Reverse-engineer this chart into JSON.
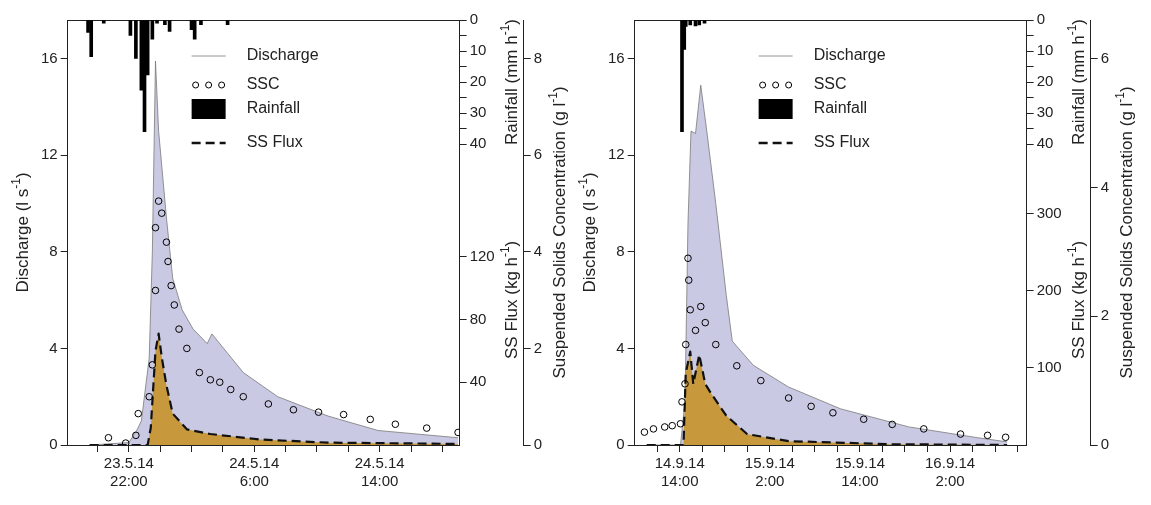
{
  "chart_data": [
    {
      "type": "bar",
      "tick_labels": "y",
      "legend": "bottom left",
      "ylabel": "Rainfall (mm h$^{-1}$)",
      "xlim": [
        "--05-23T18:06",
        "--05-24T19:06"
      ],
      "ylim": [
        40,
        0
      ],
      "yticks": [
        0,
        {
          "value": 5,
          "label": null
        },
        10,
        {
          "value": 15,
          "label": null
        },
        20,
        {
          "value": 25,
          "label": null
        },
        30,
        {
          "value": 35,
          "label": null
        },
        40
      ],
      "series": [
        {
          "name": "Rainfall",
          "color": "#000000",
          "x": [
            "--05-23T19:24",
            "--05-23T19:36",
            "--05-23T20:24",
            "--05-23T22:06",
            "--05-23T22:27",
            "--05-23T22:48",
            "--05-23T23:00",
            "--05-23T23:12",
            "--05-23T23:30",
            "--05-23T23:48",
            "--05-24T00:18",
            "--05-24T00:36",
            "--05-24T02:00",
            "--05-24T02:12",
            "--05-24T02:36",
            "--05-24T04:18"
          ],
          "values": [
            4,
            11.8,
            1,
            5,
            12.4,
            22.6,
            36,
            17.7,
            6.2,
            1,
            1.5,
            3.7,
            3.1,
            6.2,
            1.5,
            1.5
          ]
        }
      ]
    },
    {
      "type": "area",
      "legend": "top right",
      "ylabel": "Discharge (l s$^{-1}$)",
      "y2label": "Suspended Solids Concentration (g l$^{-1}$)",
      "y3label": "SS Flux (kg h$^{-1}$)",
      "xlim": [
        "--05-23T18:06",
        "--05-24T19:06"
      ],
      "xticks": [
        {
          "value": "--05-23T20:00",
          "label": null
        },
        {
          "value": "--05-23T22:00",
          "label": "23.5.14 22:00"
        },
        {
          "value": "--05-24T00:00",
          "label": null
        },
        {
          "value": "--05-24T02:00",
          "label": null
        },
        {
          "value": "--05-24T04:00",
          "label": null
        },
        {
          "value": "--05-24T06:00",
          "label": "24.5.14 6:00"
        },
        {
          "value": "--05-24T08:00",
          "label": null
        },
        {
          "value": "--05-24T10:00",
          "label": null
        },
        {
          "value": "--05-24T12:00",
          "label": null
        },
        {
          "value": "--05-24T14:00",
          "label": "24.5.14 14:00"
        },
        {
          "value": "--05-24T16:00",
          "label": null
        },
        {
          "value": "--05-24T18:00",
          "label": null
        }
      ],
      "ylim": [
        0,
        17.6
      ],
      "yticks": [
        0,
        4,
        8,
        12,
        16
      ],
      "y2lim": [
        0,
        8.8
      ],
      "y2ticks": [
        0,
        2,
        4,
        6,
        8
      ],
      "y3lim": [
        0,
        271
      ],
      "y3ticks": [
        40,
        80,
        120
      ],
      "series": [
        {
          "name": "Discharge",
          "color": "#c9c9e3",
          "x": [
            "--05-23T19:30",
            "--05-23T22:00",
            "--05-23T22:30",
            "--05-23T22:48",
            "--05-23T23:18",
            "--05-23T23:30",
            "--05-23T23:42",
            "--05-23T23:54",
            "--05-24T00:24",
            "--05-24T00:48",
            "--05-24T01:24",
            "--05-24T02:06",
            "--05-24T03:00",
            "--05-24T03:18",
            "--05-24T04:18",
            "--05-24T05:18",
            "--05-24T07:30",
            "--05-24T10:42",
            "--05-24T13:54",
            "--05-24T19:00"
          ],
          "values": [
            0,
            0.1,
            0.6,
            1.0,
            3.6,
            8.0,
            15.9,
            13.0,
            9.4,
            6.9,
            5.6,
            4.8,
            4.2,
            4.6,
            3.8,
            3.0,
            2.0,
            1.2,
            0.6,
            0.3
          ]
        },
        {
          "name": "SSC",
          "type": "scatter",
          "marker": "circle",
          "axis": "y2",
          "color": "#000000",
          "x": [
            "--05-23T20:42",
            "--05-23T21:48",
            "--05-23T22:27",
            "--05-23T22:36",
            "--05-23T23:18",
            "--05-23T23:30",
            "--05-23T23:42",
            "--05-23T23:42",
            "--05-23T23:54",
            "--05-24T00:06",
            "--05-24T00:24",
            "--05-24T00:30",
            "--05-24T00:42",
            "--05-24T00:54",
            "--05-24T01:12",
            "--05-24T01:42",
            "--05-24T02:30",
            "--05-24T03:12",
            "--05-24T03:48",
            "--05-24T04:30",
            "--05-24T05:18",
            "--05-24T06:54",
            "--05-24T08:30",
            "--05-24T10:06",
            "--05-24T11:42",
            "--05-24T13:24",
            "--05-24T15:00",
            "--05-24T17:00",
            "--05-24T19:00"
          ],
          "values": [
            0.15,
            0.04,
            0.2,
            0.65,
            1.0,
            1.66,
            3.2,
            4.5,
            5.05,
            4.8,
            4.2,
            3.8,
            3.3,
            2.9,
            2.4,
            2.0,
            1.5,
            1.35,
            1.3,
            1.15,
            1.0,
            0.85,
            0.73,
            0.68,
            0.63,
            0.53,
            0.43,
            0.35,
            0.26
          ]
        },
        {
          "name": "SS Flux",
          "type": "area",
          "line_style": "dashed",
          "axis": "y3",
          "color": "#c8993c",
          "x": [
            "--05-23T19:30",
            "--05-23T23:12",
            "--05-23T23:24",
            "--05-23T23:42",
            "--05-23T23:54",
            "--05-24T00:06",
            "--05-24T00:24",
            "--05-24T00:48",
            "--05-24T01:42",
            "--05-24T03:12",
            "--05-24T06:24",
            "--05-24T10:42",
            "--05-24T19:00"
          ],
          "values": [
            0,
            0,
            11,
            60,
            71,
            56,
            38,
            20,
            10,
            7,
            3.5,
            1.5,
            0.7
          ]
        }
      ]
    },
    {
      "type": "bar",
      "tick_labels": "y",
      "legend": "bottom left",
      "ylabel": "Rainfall (mm h$^{-1}$)",
      "xlim": [
        "--09-14T08:00",
        "--09-16T12:12"
      ],
      "ylim": [
        40,
        0
      ],
      "yticks": [
        0,
        {
          "value": 5,
          "label": null
        },
        10,
        {
          "value": 15,
          "label": null
        },
        20,
        {
          "value": 25,
          "label": null
        },
        30,
        {
          "value": 35,
          "label": null
        },
        40
      ],
      "series": [
        {
          "name": "Rainfall",
          "color": "#000000",
          "x": [
            "--09-14T14:18",
            "--09-14T14:36",
            "--09-14T14:48",
            "--09-14T15:24",
            "--09-14T16:06",
            "--09-14T16:36",
            "--09-14T17:18"
          ],
          "values": [
            36,
            9.5,
            2.1,
            1.6,
            1.9,
            1.6,
            1
          ]
        }
      ]
    },
    {
      "type": "area",
      "legend": "top right",
      "ylabel": "Discharge (l s$^{-1}$)",
      "y2label": "Suspended Solids Concentration (g l$^{-1}$)",
      "y3label": "SS Flux (kg h$^{-1}$)",
      "xlim": [
        "--09-14T08:00",
        "--09-16T12:12"
      ],
      "xticks": [
        {
          "value": "--09-14T11:00",
          "label": null
        },
        {
          "value": "--09-14T14:00",
          "label": "14.9.14 14:00"
        },
        {
          "value": "--09-14T17:00",
          "label": null
        },
        {
          "value": "--09-14T20:00",
          "label": null
        },
        {
          "value": "--09-14T23:00",
          "label": null
        },
        {
          "value": "--09-15T02:00",
          "label": "15.9.14 2:00"
        },
        {
          "value": "--09-15T05:00",
          "label": null
        },
        {
          "value": "--09-15T08:00",
          "label": null
        },
        {
          "value": "--09-15T11:00",
          "label": null
        },
        {
          "value": "--09-15T14:00",
          "label": "15.9.14 14:00"
        },
        {
          "value": "--09-15T17:00",
          "label": null
        },
        {
          "value": "--09-15T20:00",
          "label": null
        },
        {
          "value": "--09-15T23:00",
          "label": null
        },
        {
          "value": "--09-16T02:00",
          "label": "16.9.14 2:00"
        },
        {
          "value": "--09-16T05:00",
          "label": null
        },
        {
          "value": "--09-16T08:00",
          "label": null
        },
        {
          "value": "--09-16T11:00",
          "label": null
        }
      ],
      "ylim": [
        0,
        17.6
      ],
      "yticks": [
        0,
        4,
        8,
        12,
        16
      ],
      "y2lim": [
        0,
        6.6
      ],
      "y2ticks": [
        0,
        2,
        4,
        6
      ],
      "y3lim": [
        0,
        551
      ],
      "y3ticks": [
        100,
        200,
        300
      ],
      "series": [
        {
          "name": "Discharge",
          "color": "#c9c9e3",
          "x": [
            "--09-14T09:36",
            "--09-14T14:06",
            "--09-14T14:42",
            "--09-14T15:06",
            "--09-14T15:30",
            "--09-14T16:06",
            "--09-14T16:48",
            "--09-14T17:36",
            "--09-14T18:48",
            "--09-14T20:12",
            "--09-14T21:00",
            "--09-14T23:48",
            "--09-15T04:30",
            "--09-15T11:24",
            "--09-15T20:30",
            "--09-16T05:42",
            "--09-16T09:36"
          ],
          "values": [
            0,
            0,
            1.8,
            9.2,
            13.0,
            12.9,
            14.9,
            13.0,
            10.0,
            6.2,
            4.3,
            3.3,
            2.4,
            1.5,
            0.75,
            0.3,
            0.13
          ]
        },
        {
          "name": "SSC",
          "type": "scatter",
          "marker": "circle",
          "axis": "y2",
          "color": "#000000",
          "x": [
            "--09-14T09:18",
            "--09-14T10:30",
            "--09-14T12:00",
            "--09-14T13:00",
            "--09-14T14:06",
            "--09-14T14:18",
            "--09-14T14:42",
            "--09-14T14:48",
            "--09-14T15:06",
            "--09-14T15:12",
            "--09-14T15:24",
            "--09-14T16:06",
            "--09-14T16:48",
            "--09-14T17:24",
            "--09-14T18:48",
            "--09-14T21:36",
            "--09-15T00:48",
            "--09-15T04:30",
            "--09-15T07:30",
            "--09-15T10:24",
            "--09-15T14:30",
            "--09-15T18:18",
            "--09-15T22:30",
            "--09-16T03:24",
            "--09-16T07:00",
            "--09-16T09:24"
          ],
          "values": [
            0.2,
            0.25,
            0.28,
            0.3,
            0.33,
            0.67,
            0.95,
            1.56,
            2.9,
            2.56,
            2.1,
            1.78,
            2.15,
            1.9,
            1.56,
            1.23,
            1.0,
            0.73,
            0.6,
            0.5,
            0.4,
            0.32,
            0.25,
            0.17,
            0.15,
            0.12
          ]
        },
        {
          "name": "SS Flux",
          "type": "area",
          "line_style": "dashed",
          "axis": "y3",
          "color": "#c8993c",
          "x": [
            "--09-14T09:36",
            "--09-14T14:30",
            "--09-14T14:48",
            "--09-14T15:24",
            "--09-14T15:48",
            "--09-14T16:36",
            "--09-14T17:24",
            "--09-14T18:18",
            "--09-14T20:12",
            "--09-14T23:00",
            "--09-15T04:30",
            "--09-15T18:18",
            "--09-16T09:36"
          ],
          "values": [
            0,
            0,
            93,
            121,
            79,
            117,
            79,
            65,
            38,
            14,
            5,
            1,
            0
          ]
        }
      ]
    }
  ]
}
